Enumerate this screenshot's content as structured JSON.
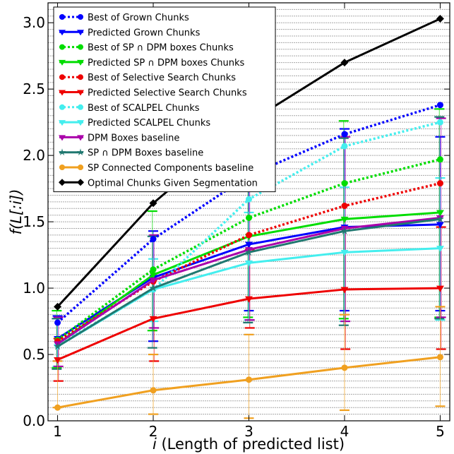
{
  "chart_data": {
    "type": "line",
    "xlabel": "i (Length of predicted list)",
    "ylabel": "f(L[:i])",
    "xlim": [
      0.9,
      5.1
    ],
    "ylim": [
      0.0,
      3.15
    ],
    "xticks": [
      "1",
      "2",
      "3",
      "4",
      "5"
    ],
    "yticks": [
      "0.0",
      "0.5",
      "1.0",
      "1.5",
      "2.0",
      "2.5",
      "3.0"
    ],
    "ytick_values": [
      0.0,
      0.5,
      1.0,
      1.5,
      2.0,
      2.5,
      3.0
    ],
    "grid": true,
    "legend_position": "top-left",
    "x": [
      1,
      2,
      3,
      4,
      5
    ],
    "series": [
      {
        "name": "Best of Grown Chunks",
        "color": "#0000ff",
        "style": "dotted",
        "marker": "circle",
        "values": [
          0.74,
          1.37,
          1.85,
          2.16,
          2.38
        ]
      },
      {
        "name": "Predicted Grown Chunks",
        "color": "#0000ff",
        "style": "solid",
        "marker": "triangle-down",
        "values": [
          0.62,
          1.08,
          1.33,
          1.46,
          1.48
        ],
        "error_low": [
          0.45,
          0.6,
          0.83,
          0.83,
          0.83
        ],
        "error_high": [
          0.79,
          1.43,
          1.85,
          2.2,
          2.14
        ]
      },
      {
        "name": "Best of SP ∩ DPM boxes Chunks",
        "color": "#00dd00",
        "style": "dotted",
        "marker": "circle",
        "values": [
          0.61,
          1.14,
          1.53,
          1.79,
          1.97
        ]
      },
      {
        "name": "Predicted SP ∩ DPM boxes Chunks",
        "color": "#00dd00",
        "style": "solid",
        "marker": "triangle-down",
        "values": [
          0.58,
          1.1,
          1.39,
          1.52,
          1.57
        ],
        "error_low": [
          0.4,
          0.68,
          0.78,
          0.77,
          0.78
        ],
        "error_high": [
          0.83,
          1.58,
          2.03,
          2.26,
          2.35
        ]
      },
      {
        "name": "Best of Selective Search Chunks",
        "color": "#ee0000",
        "style": "dotted",
        "marker": "circle",
        "values": [
          0.6,
          1.05,
          1.4,
          1.62,
          1.79
        ]
      },
      {
        "name": "Predicted Selective Search Chunks",
        "color": "#ee0000",
        "style": "solid",
        "marker": "triangle-down",
        "values": [
          0.46,
          0.77,
          0.92,
          0.99,
          1.0
        ],
        "error_low": [
          0.3,
          0.45,
          0.7,
          0.54,
          0.54
        ],
        "error_high": [
          0.62,
          1.07,
          1.29,
          1.45,
          1.46
        ]
      },
      {
        "name": "Best of SCALPEL Chunks",
        "color": "#44eeee",
        "style": "dotted",
        "marker": "circle",
        "values": [
          0.57,
          0.99,
          1.67,
          2.07,
          2.25
        ]
      },
      {
        "name": "Predicted SCALPEL Chunks",
        "color": "#44eeee",
        "style": "solid",
        "marker": "triangle-down",
        "values": [
          0.56,
          0.99,
          1.19,
          1.27,
          1.3
        ],
        "error_low": [
          0.41,
          0.75,
          0.76,
          0.75,
          0.76
        ],
        "error_high": [
          0.77,
          1.22,
          1.57,
          1.76,
          1.83
        ]
      },
      {
        "name": "DPM Boxes baseline",
        "color": "#aa00aa",
        "style": "solid",
        "marker": "triangle-down",
        "values": [
          0.58,
          1.06,
          1.29,
          1.45,
          1.53
        ],
        "error_low": [
          0.41,
          0.7,
          0.76,
          0.75,
          0.78
        ],
        "error_high": [
          0.78,
          1.4,
          1.83,
          2.14,
          2.28
        ]
      },
      {
        "name": "SP ∩ DPM Boxes baseline",
        "color": "#207870",
        "style": "solid",
        "marker": "star",
        "values": [
          0.56,
          1.0,
          1.27,
          1.43,
          1.52
        ],
        "error_low": [
          0.39,
          0.55,
          0.74,
          0.72,
          0.77
        ],
        "error_high": [
          0.77,
          1.39,
          1.84,
          2.13,
          2.29
        ]
      },
      {
        "name": "SP Connected Components baseline",
        "color": "#f0a020",
        "style": "solid",
        "marker": "circle",
        "values": [
          0.1,
          0.23,
          0.31,
          0.4,
          0.48
        ],
        "error_low": [
          0.1,
          0.05,
          0.02,
          0.08,
          0.11
        ],
        "error_high": [
          0.45,
          0.5,
          0.65,
          0.8,
          0.86
        ]
      },
      {
        "name": "Optimal Chunks Given Segmentation",
        "color": "#000000",
        "style": "solid",
        "marker": "diamond",
        "values": [
          0.86,
          1.64,
          2.25,
          2.7,
          3.03
        ]
      }
    ]
  }
}
